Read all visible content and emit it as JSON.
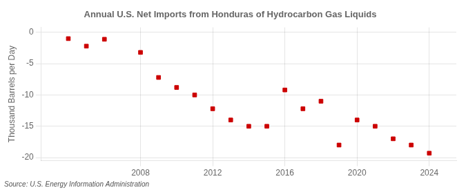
{
  "chart_data": {
    "type": "scatter",
    "title": "Annual U.S. Net Imports from Honduras of Hydrocarbon Gas Liquids",
    "ylabel": "Thousand Barrels per Day",
    "source": "Source: U.S. Energy Information Administration",
    "x": [
      2004,
      2005,
      2006,
      2008,
      2009,
      2010,
      2011,
      2012,
      2013,
      2014,
      2015,
      2016,
      2017,
      2018,
      2019,
      2020,
      2021,
      2022,
      2023,
      2024
    ],
    "values": [
      -1.0,
      -2.2,
      -1.1,
      -3.2,
      -7.2,
      -8.8,
      -10.0,
      -12.2,
      -14.0,
      -15.0,
      -15.0,
      -9.2,
      -12.2,
      -11.0,
      -18.0,
      -14.0,
      -15.0,
      -17.0,
      -18.0,
      -19.3
    ],
    "color": "#cc0000",
    "marker": "square",
    "xlim": [
      2002.5,
      2025.5
    ],
    "ylim": [
      -20.5,
      0.8
    ],
    "xticks": [
      2008,
      2012,
      2016,
      2020,
      2024
    ],
    "yticks": [
      0,
      -5,
      -10,
      -15,
      -20
    ],
    "grid": true
  }
}
